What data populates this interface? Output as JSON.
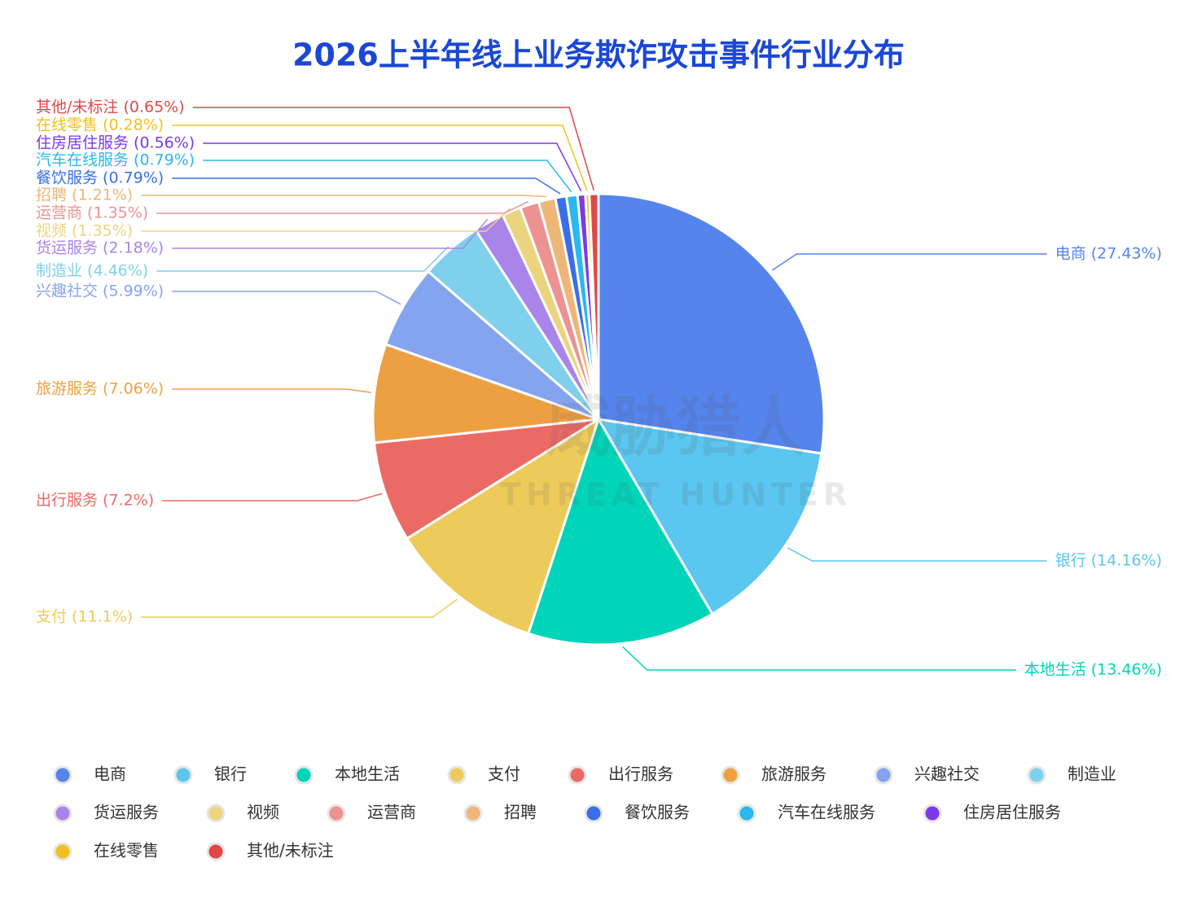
{
  "chart_data": {
    "type": "pie",
    "title": "2026上半年线上业务欺诈攻击事件行业分布",
    "watermark": [
      "威胁猎人",
      "THREAT HUNTER"
    ],
    "categories": [
      "电商",
      "银行",
      "本地生活",
      "支付",
      "出行服务",
      "旅游服务",
      "兴趣社交",
      "制造业",
      "货运服务",
      "视频",
      "运营商",
      "招聘",
      "餐饮服务",
      "汽车在线服务",
      "住房居住服务",
      "在线零售",
      "其他/未标注"
    ],
    "values": [
      27.43,
      14.16,
      13.46,
      11.1,
      7.2,
      7.06,
      5.99,
      4.46,
      2.18,
      1.35,
      1.35,
      1.21,
      0.79,
      0.79,
      0.56,
      0.28,
      0.65
    ],
    "value_labels": [
      "电商 (27.43%)",
      "银行 (14.16%)",
      "本地生活 (13.46%)",
      "支付 (11.1%)",
      "出行服务 (7.2%)",
      "旅游服务 (7.06%)",
      "兴趣社交 (5.99%)",
      "制造业 (4.46%)",
      "货运服务 (2.18%)",
      "视频 (1.35%)",
      "运营商 (1.35%)",
      "招聘 (1.21%)",
      "餐饮服务 (0.79%)",
      "汽车在线服务 (0.79%)",
      "住房居住服务 (0.56%)",
      "在线零售 (0.28%)",
      "其他/未标注 (0.65%)"
    ],
    "colors": [
      "#5584ed",
      "#5bc6f0",
      "#00d4b9",
      "#eccb5a",
      "#ec6a66",
      "#eda042",
      "#85a4ef",
      "#7fd0ec",
      "#a985ea",
      "#ecd47f",
      "#ec9391",
      "#eeb677",
      "#3a6fe8",
      "#2ab8ee",
      "#7a3ae8",
      "#f0c020",
      "#e04848"
    ],
    "legend": "bottom"
  }
}
